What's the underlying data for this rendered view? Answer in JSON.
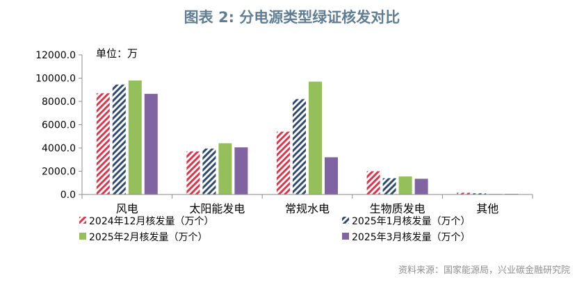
{
  "chart_data": {
    "type": "bar",
    "title": "图表 2:  分电源类型绿证核发对比",
    "unit_label": "单位：万",
    "categories": [
      "风电",
      "太阳能发电",
      "常规水电",
      "生物质发电",
      "其他"
    ],
    "ylim": [
      0,
      12000
    ],
    "yticks": [
      "0.0",
      "2000.0",
      "4000.0",
      "6000.0",
      "8000.0",
      "10000.0",
      "12000.0"
    ],
    "grid": false,
    "legend_position": "bottom",
    "series": [
      {
        "name": "2024年12月核发量（万个）",
        "values": [
          8700,
          3700,
          5400,
          2000,
          150
        ],
        "color": "#e0344a",
        "pattern": "red-hatch"
      },
      {
        "name": "2025年1月核发量（万个）",
        "values": [
          9450,
          3950,
          8200,
          1400,
          100
        ],
        "color": "#2e4a72",
        "pattern": "navy-hatch"
      },
      {
        "name": "2025年2月核发量（万个）",
        "values": [
          9800,
          4400,
          9700,
          1550,
          50
        ],
        "color": "#94bf5a",
        "pattern": "solid"
      },
      {
        "name": "2025年3月核发量（万个）",
        "values": [
          8650,
          4050,
          3200,
          1350,
          50
        ],
        "color": "#8064a2",
        "pattern": "solid"
      }
    ],
    "source": "资料来源：国家能源局，兴业碳金融研究院"
  }
}
